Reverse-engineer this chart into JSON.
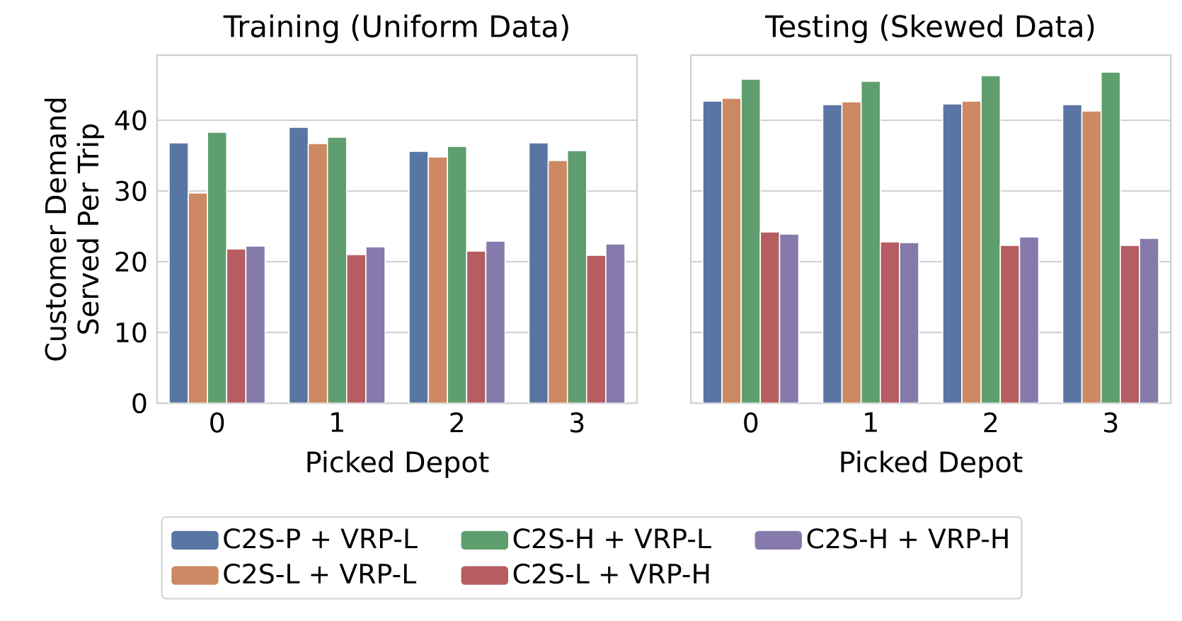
{
  "chart_data": [
    {
      "type": "bar",
      "title": "Training (Uniform Data)",
      "xlabel": "Picked Depot",
      "ylabel": "Customer Demand Served Per Trip",
      "categories": [
        "0",
        "1",
        "2",
        "3"
      ],
      "ylim": [
        0,
        49.2
      ],
      "yticks": [
        0,
        10,
        20,
        30,
        40
      ],
      "grid": "y",
      "legend": "bottom",
      "series": [
        {
          "name": "C2S-P + VRP-L",
          "color": "#5975a4",
          "values": [
            36.8,
            39.0,
            35.6,
            36.8
          ]
        },
        {
          "name": "C2S-L + VRP-L",
          "color": "#cc8963",
          "values": [
            29.7,
            36.7,
            34.8,
            34.3
          ]
        },
        {
          "name": "C2S-H + VRP-L",
          "color": "#5f9e6e",
          "values": [
            38.3,
            37.6,
            36.3,
            35.7
          ]
        },
        {
          "name": "C2S-L + VRP-H",
          "color": "#b55d60",
          "values": [
            21.8,
            21.0,
            21.5,
            20.9
          ]
        },
        {
          "name": "C2S-H + VRP-H",
          "color": "#857aab",
          "values": [
            22.2,
            22.1,
            22.9,
            22.5
          ]
        }
      ]
    },
    {
      "type": "bar",
      "title": "Testing (Skewed Data)",
      "xlabel": "Picked Depot",
      "categories": [
        "0",
        "1",
        "2",
        "3"
      ],
      "ylim": [
        0,
        49.2
      ],
      "yticks": [
        0,
        10,
        20,
        30,
        40
      ],
      "grid": "y",
      "tick_labels": "x",
      "series": [
        {
          "color": "#5975a4",
          "values": [
            42.7,
            42.2,
            42.3,
            42.2
          ]
        },
        {
          "color": "#cc8963",
          "values": [
            43.1,
            42.6,
            42.7,
            41.3
          ]
        },
        {
          "color": "#5f9e6e",
          "values": [
            45.8,
            45.5,
            46.3,
            46.8
          ]
        },
        {
          "color": "#b55d60",
          "values": [
            24.2,
            22.8,
            22.3,
            22.3
          ]
        },
        {
          "color": "#857aab",
          "values": [
            23.9,
            22.7,
            23.5,
            23.3
          ]
        }
      ]
    }
  ]
}
